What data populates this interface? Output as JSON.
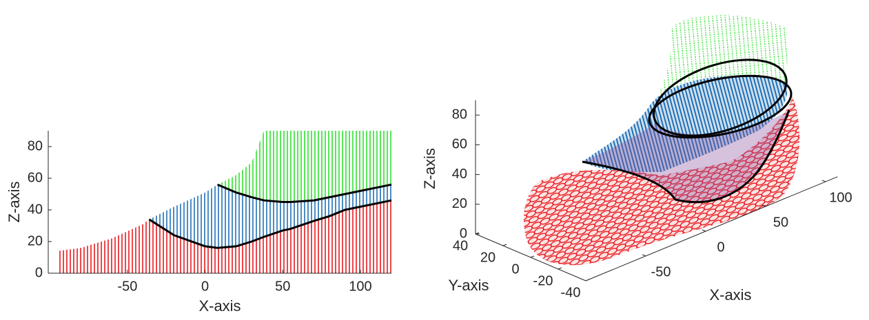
{
  "chart_data": [
    {
      "type": "region-profile",
      "xlabel": "X-axis",
      "ylabel": "Z-axis",
      "x": [
        -95,
        -80,
        -60,
        -40,
        -36,
        -20,
        0,
        8,
        20,
        30,
        38,
        50,
        55,
        70,
        80,
        90,
        100,
        110,
        120
      ],
      "series": [
        {
          "color": "#e8161b",
          "values": [
            14,
            16,
            22,
            31,
            34,
            24,
            17,
            16,
            17,
            20,
            23,
            27,
            28,
            33,
            36,
            40,
            42,
            44,
            46
          ]
        },
        {
          "color": "#1f6fb4",
          "values": [
            null,
            null,
            null,
            null,
            34,
            42,
            51,
            56,
            51,
            48,
            46,
            45,
            45,
            46,
            48,
            50,
            52,
            54,
            56
          ]
        },
        {
          "color": "#2ee02e",
          "values": [
            null,
            null,
            null,
            null,
            null,
            null,
            null,
            56,
            62,
            70,
            90,
            90,
            90,
            90,
            90,
            90,
            90,
            90,
            90
          ]
        }
      ],
      "outline_color": "#000000",
      "xlim": [
        -101,
        120
      ],
      "ylim": [
        0,
        90
      ],
      "xticks": [
        -50,
        0,
        50,
        100
      ],
      "yticks": [
        0,
        20,
        40,
        60,
        80
      ]
    },
    {
      "type": "surface3d",
      "xlabel": "X-axis",
      "ylabel": "Y-axis",
      "zlabel": "Z-axis",
      "xlim": [
        -100,
        110
      ],
      "ylim": [
        -40,
        40
      ],
      "zlim": [
        0,
        90
      ],
      "xticks": [
        -50,
        0,
        50,
        100
      ],
      "yticks": [
        40,
        20,
        0,
        -20,
        -40
      ],
      "zticks": [
        0,
        20,
        40,
        60,
        80
      ]
    }
  ]
}
